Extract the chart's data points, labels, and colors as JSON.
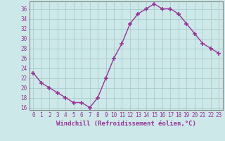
{
  "x": [
    0,
    1,
    2,
    3,
    4,
    5,
    6,
    7,
    8,
    9,
    10,
    11,
    12,
    13,
    14,
    15,
    16,
    17,
    18,
    19,
    20,
    21,
    22,
    23
  ],
  "y": [
    23,
    21,
    20,
    19,
    18,
    17,
    17,
    16,
    18,
    22,
    26,
    29,
    33,
    35,
    36,
    37,
    36,
    36,
    35,
    33,
    31,
    29,
    28,
    27
  ],
  "line_color": "#993399",
  "marker": "+",
  "marker_size": 4,
  "marker_lw": 1.2,
  "line_width": 1.0,
  "bg_color": "#cce8e8",
  "grid_color": "#aacccc",
  "xlabel": "Windchill (Refroidissement éolien,°C)",
  "ytick_min": 16,
  "ytick_max": 36,
  "ytick_step": 2,
  "xtick_labels": [
    "0",
    "1",
    "2",
    "3",
    "4",
    "5",
    "6",
    "7",
    "8",
    "9",
    "10",
    "11",
    "12",
    "13",
    "14",
    "15",
    "16",
    "17",
    "18",
    "19",
    "20",
    "21",
    "22",
    "23"
  ],
  "tick_fontsize": 5.5,
  "xlabel_fontsize": 6.5
}
